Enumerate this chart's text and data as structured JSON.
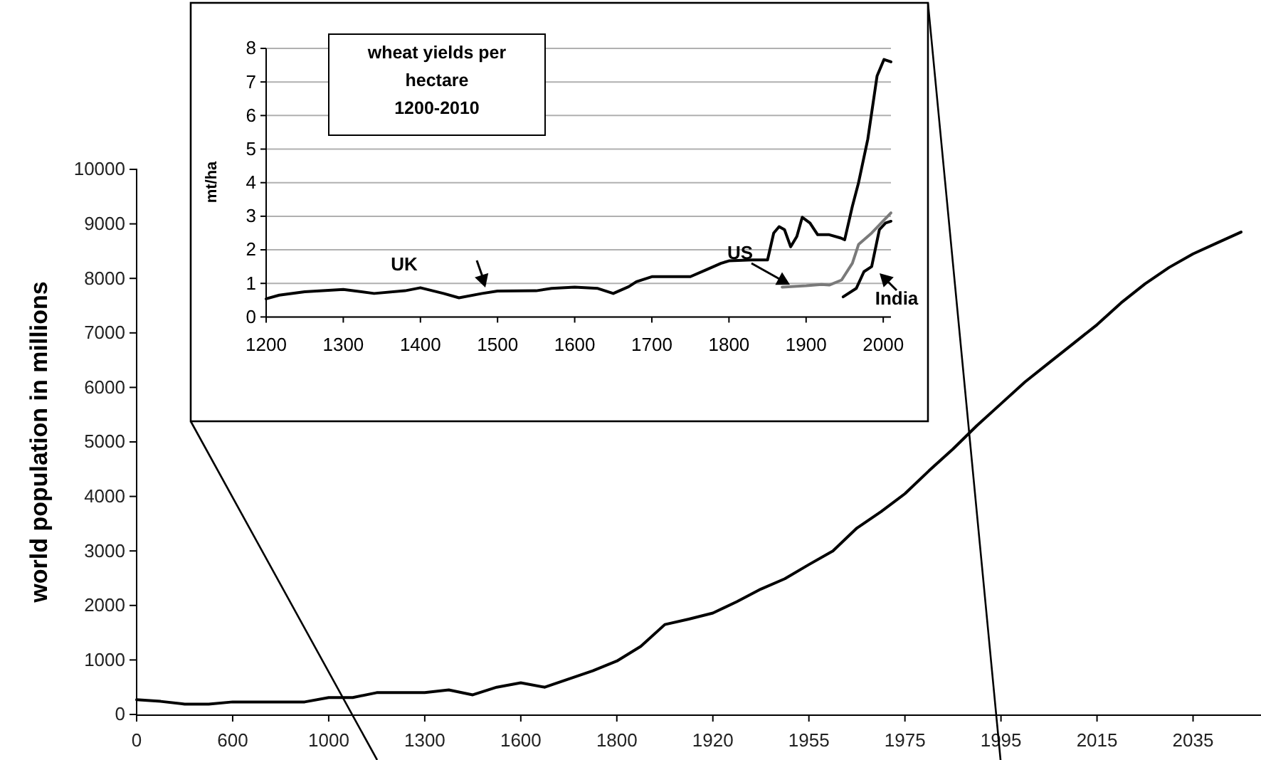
{
  "chart_data": [
    {
      "type": "line",
      "ylabel": "world population in millions",
      "categories": [
        "0",
        null,
        null,
        null,
        "600",
        null,
        null,
        null,
        "1000",
        null,
        null,
        null,
        "1300",
        null,
        null,
        null,
        "1600",
        null,
        null,
        null,
        "1800",
        null,
        null,
        null,
        "1920",
        null,
        null,
        null,
        "1955",
        null,
        null,
        null,
        "1975",
        null,
        null,
        null,
        "1995",
        null,
        null,
        null,
        "2015",
        null,
        null,
        null,
        "2035",
        null,
        null
      ],
      "series": [
        {
          "color": "#000000",
          "values": [
            270,
            240,
            190,
            190,
            230,
            230,
            230,
            230,
            310,
            310,
            400,
            400,
            400,
            450,
            360,
            500,
            580,
            500,
            650,
            800,
            980,
            1250,
            1650,
            1750,
            1860,
            2070,
            2300,
            2490,
            2750,
            3000,
            3420,
            3720,
            4050,
            4470,
            4870,
            5300,
            5700,
            6100,
            6450,
            6800,
            7150,
            7550,
            7900,
            8200,
            8450,
            8650,
            8850
          ]
        }
      ],
      "ylim": [
        0,
        10000
      ],
      "yticks": [
        0,
        1000,
        2000,
        3000,
        4000,
        5000,
        6000,
        7000,
        8000,
        9000,
        10000
      ],
      "grid": false
    },
    {
      "type": "line",
      "title": "wheat yields per hectare 1200-2010",
      "ylabel": "mt/ha",
      "series": [
        {
          "name": "UK",
          "color": "#000000",
          "x": [
            1200,
            1217,
            1250,
            1300,
            1340,
            1380,
            1400,
            1430,
            1450,
            1480,
            1500,
            1550,
            1570,
            1600,
            1630,
            1650,
            1670,
            1680,
            1700,
            1750,
            1770,
            1790,
            1800,
            1830,
            1850,
            1858,
            1865,
            1872,
            1880,
            1888,
            1895,
            1905,
            1915,
            1930,
            1945,
            1950,
            1960,
            1968,
            1980,
            1992,
            2001,
            2010
          ],
          "values": [
            0.54,
            0.65,
            0.75,
            0.82,
            0.7,
            0.78,
            0.87,
            0.7,
            0.57,
            0.7,
            0.77,
            0.78,
            0.85,
            0.89,
            0.85,
            0.7,
            0.9,
            1.05,
            1.2,
            1.2,
            1.4,
            1.6,
            1.67,
            1.7,
            1.7,
            2.5,
            2.69,
            2.6,
            2.09,
            2.4,
            2.97,
            2.8,
            2.45,
            2.45,
            2.35,
            2.3,
            3.3,
            4.0,
            5.3,
            7.18,
            7.67,
            7.6
          ]
        },
        {
          "name": "US",
          "color": "#7a7a7a",
          "x": [
            1869,
            1900,
            1920,
            1930,
            1946,
            1960,
            1968,
            1985,
            2010
          ],
          "values": [
            0.89,
            0.93,
            0.97,
            0.95,
            1.1,
            1.6,
            2.16,
            2.5,
            3.1
          ]
        },
        {
          "name": "India",
          "color": "#000000",
          "x": [
            1948,
            1965,
            1975,
            1985,
            1995,
            2003,
            2010
          ],
          "values": [
            0.6,
            0.85,
            1.35,
            1.5,
            2.6,
            2.8,
            2.85
          ]
        }
      ],
      "xlim": [
        1200,
        2010
      ],
      "xticks": [
        1200,
        1300,
        1400,
        1500,
        1600,
        1700,
        1800,
        1900,
        2000
      ],
      "ylim": [
        0,
        8
      ],
      "yticks": [
        0,
        1,
        2,
        3,
        4,
        5,
        6,
        7,
        8
      ],
      "grid": "y"
    }
  ]
}
